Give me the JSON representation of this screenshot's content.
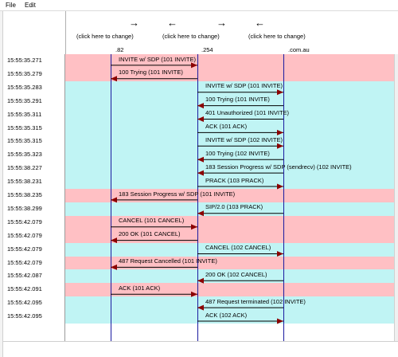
{
  "menu": [
    "File",
    "Edit"
  ],
  "columns": [
    {
      "arrow": "→",
      "link": "(click here to change)",
      "node": ".82"
    },
    {
      "arrow": "←",
      "link": "(click here to change)",
      "node": ".254"
    },
    {
      "arrow": "→",
      "link": "(click here to change)",
      "node": ""
    },
    {
      "arrow": "←",
      "link": "(click here to change)",
      "node": ".com.au"
    }
  ],
  "colors": {
    "pink": "#ffc0c4",
    "cyan": "#c0f4f4",
    "line": "#1a1aa0",
    "arrowhead": "#8b0000"
  },
  "rows": [
    {
      "time": "15:55:35.271",
      "color": "pink",
      "label": "INVITE w/ SDP (101 INVITE)",
      "from": 0,
      "to": 1
    },
    {
      "time": "15:55:35.279",
      "color": "pink",
      "label": "100 Trying (101 INVITE)",
      "from": 1,
      "to": 0
    },
    {
      "time": "15:55:35.283",
      "color": "cyan",
      "label": "INVITE w/ SDP (101 INVITE)",
      "from": 1,
      "to": 2
    },
    {
      "time": "15:55:35.291",
      "color": "cyan",
      "label": "100 Trying (101 INVITE)",
      "from": 2,
      "to": 1
    },
    {
      "time": "15:55:35.311",
      "color": "cyan",
      "label": "401 Unauthorized (101 INVITE)",
      "from": 2,
      "to": 1
    },
    {
      "time": "15:55:35.315",
      "color": "cyan",
      "label": "ACK (101 ACK)",
      "from": 1,
      "to": 2
    },
    {
      "time": "15:55:35.315",
      "color": "cyan",
      "label": "INVITE w/ SDP (102 INVITE)",
      "from": 1,
      "to": 2
    },
    {
      "time": "15:55:35.323",
      "color": "cyan",
      "label": "100 Trying (102 INVITE)",
      "from": 2,
      "to": 1
    },
    {
      "time": "15:55:38.227",
      "color": "cyan",
      "label": "183 Session Progress w/ SDP (sendrecv)  (102 INVITE)",
      "from": 2,
      "to": 1
    },
    {
      "time": "15:55:38.231",
      "color": "cyan",
      "label": "PRACK (103 PRACK)",
      "from": 1,
      "to": 2
    },
    {
      "time": "15:55:38.235",
      "color": "pink",
      "label": "183 Session Progress w/ SDP (101 INVITE)",
      "from": 1,
      "to": 0
    },
    {
      "time": "15:55:38.299",
      "color": "cyan",
      "label": "SIP/2.0 (103 PRACK)",
      "from": 2,
      "to": 1
    },
    {
      "time": "15:55:42.079",
      "color": "pink",
      "label": "CANCEL (101 CANCEL)",
      "from": 0,
      "to": 1
    },
    {
      "time": "15:55:42.079",
      "color": "pink",
      "label": "200 OK (101 CANCEL)",
      "from": 1,
      "to": 0
    },
    {
      "time": "15:55:42.079",
      "color": "cyan",
      "label": "CANCEL (102 CANCEL)",
      "from": 1,
      "to": 2
    },
    {
      "time": "15:55:42.079",
      "color": "pink",
      "label": "487 Request Cancelled (101 INVITE)",
      "from": 1,
      "to": 0
    },
    {
      "time": "15:55:42.087",
      "color": "cyan",
      "label": "200 OK (102 CANCEL)",
      "from": 2,
      "to": 1
    },
    {
      "time": "15:55:42.091",
      "color": "pink",
      "label": "ACK (101 ACK)",
      "from": 0,
      "to": 1
    },
    {
      "time": "15:55:42.095",
      "color": "cyan",
      "label": "487 Request terminated (102 INVITE)",
      "from": 2,
      "to": 1
    },
    {
      "time": "15:55:42.095",
      "color": "cyan",
      "label": "ACK (102 ACK)",
      "from": 1,
      "to": 2
    }
  ]
}
